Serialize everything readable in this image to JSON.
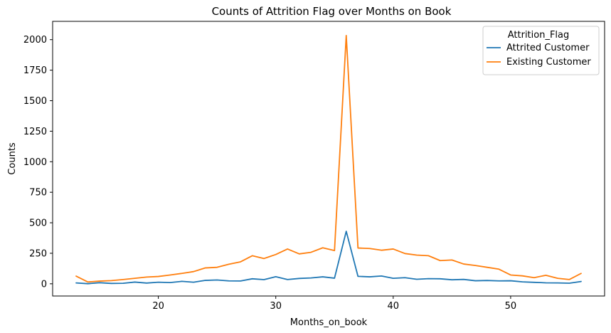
{
  "chart_data": {
    "type": "line",
    "title": "Counts of Attrition Flag over Months on Book",
    "xlabel": "Months_on_book",
    "ylabel": "Counts",
    "xlim": [
      11,
      58
    ],
    "ylim": [
      -100,
      2150
    ],
    "xticks": [
      20,
      30,
      40,
      50
    ],
    "yticks": [
      0,
      250,
      500,
      750,
      1000,
      1250,
      1500,
      1750,
      2000
    ],
    "grid": false,
    "legend": {
      "title": "Attrition_Flag",
      "placement": "top-right"
    },
    "x": [
      13,
      14,
      15,
      16,
      17,
      18,
      19,
      20,
      21,
      22,
      23,
      24,
      25,
      26,
      27,
      28,
      29,
      30,
      31,
      32,
      33,
      34,
      35,
      36,
      37,
      38,
      39,
      40,
      41,
      42,
      43,
      44,
      45,
      46,
      47,
      48,
      49,
      50,
      51,
      52,
      53,
      54,
      55,
      56
    ],
    "series": [
      {
        "name": "Attrited Customer",
        "color": "#1f77b4",
        "values": [
          7,
          1,
          9,
          3,
          4,
          14,
          6,
          13,
          10,
          20,
          13,
          28,
          31,
          24,
          23,
          41,
          34,
          58,
          35,
          44,
          48,
          57,
          46,
          430,
          61,
          57,
          64,
          45,
          50,
          37,
          42,
          41,
          33,
          36,
          25,
          27,
          24,
          25,
          16,
          12,
          8,
          7,
          5,
          19
        ]
      },
      {
        "name": "Existing Customer",
        "color": "#ff7f0e",
        "values": [
          63,
          15,
          22,
          26,
          35,
          45,
          55,
          60,
          72,
          85,
          100,
          130,
          135,
          160,
          180,
          230,
          207,
          240,
          285,
          245,
          258,
          295,
          272,
          2034,
          293,
          289,
          275,
          285,
          248,
          235,
          230,
          190,
          195,
          162,
          150,
          135,
          120,
          72,
          65,
          50,
          70,
          45,
          35,
          85
        ]
      }
    ]
  }
}
